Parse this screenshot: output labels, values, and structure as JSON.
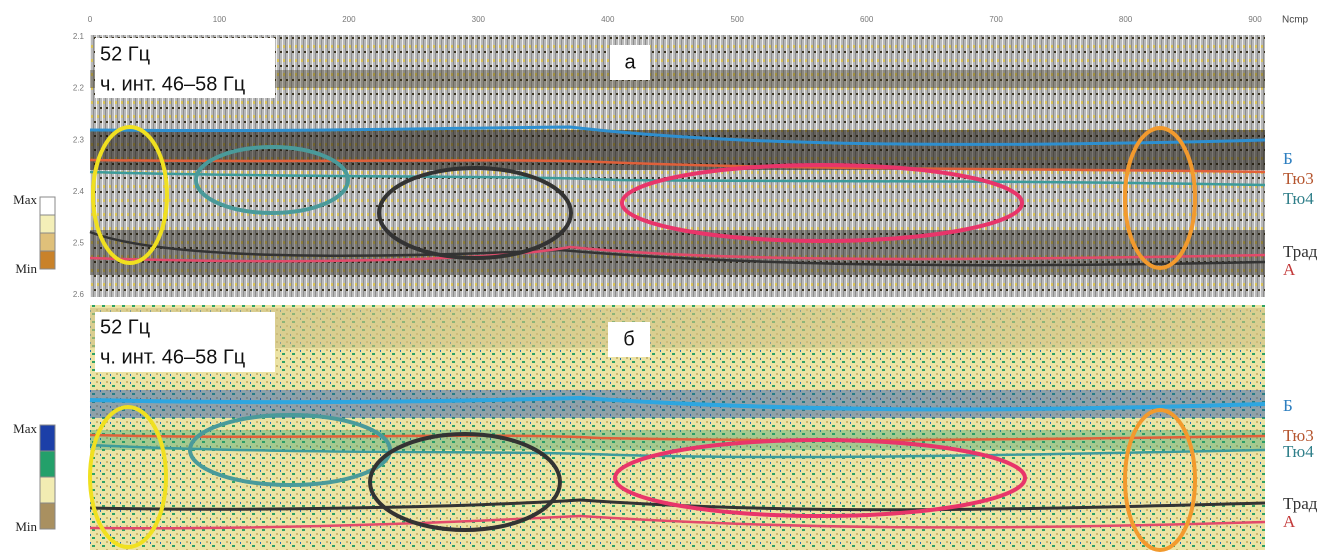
{
  "axis": {
    "title": "Ncmp",
    "ticks": [
      0,
      100,
      200,
      300,
      400,
      500,
      600,
      700,
      800,
      900
    ],
    "yticks": [
      2.1,
      2.2,
      2.3,
      2.4,
      2.5,
      2.6
    ]
  },
  "panels": [
    {
      "label": "а",
      "frequency": "52 Гц",
      "band": "ч. инт. 46–58 Гц",
      "legend": {
        "max": "Max",
        "min": "Min"
      },
      "horizons": [
        "Б",
        "Тю3",
        "Тю4",
        "Трад",
        "А"
      ]
    },
    {
      "label": "б",
      "frequency": "52 Гц",
      "band": "ч. инт. 46–58 Гц",
      "legend": {
        "max": "Max",
        "min": "Min"
      },
      "horizons": [
        "Б",
        "Тю3",
        "Тю4",
        "Трад",
        "А"
      ]
    }
  ]
}
